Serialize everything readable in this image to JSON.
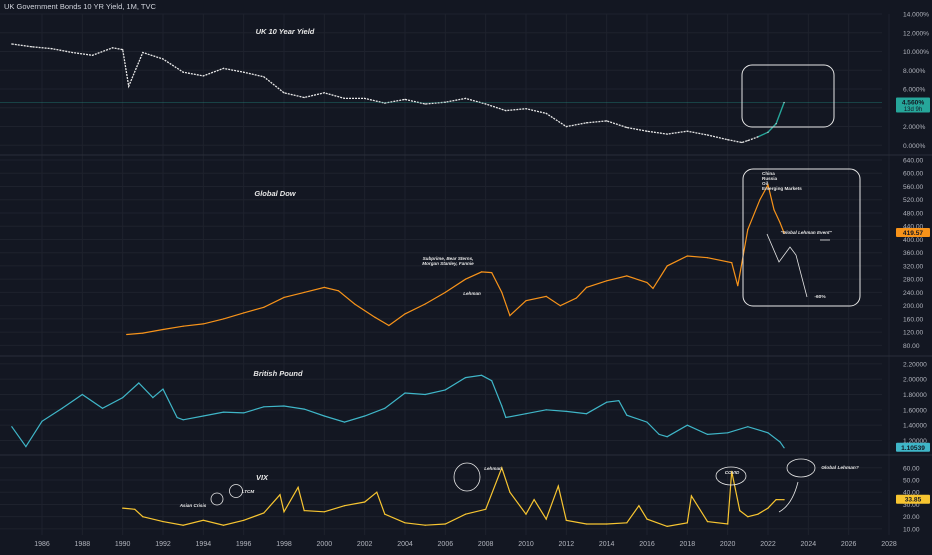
{
  "header": {
    "title": "UK Government Bonds 10 YR Yield, 1M, TVC"
  },
  "colors": {
    "background": "#131722",
    "grid": "#1e222d",
    "axis_text": "#b2b5be",
    "uk10y": "#e8e8e8",
    "uk10y_recent": "#26a69a",
    "global_dow": "#f7931a",
    "gbp": "#3fb6c8",
    "vix": "#f7c531",
    "annotation": "#e6e6e6"
  },
  "x_axis": {
    "ticks": [
      "1986",
      "1988",
      "1990",
      "1992",
      "1994",
      "1996",
      "1998",
      "2000",
      "2002",
      "2004",
      "2006",
      "2008",
      "2010",
      "2012",
      "2014",
      "2016",
      "2018",
      "2020",
      "2022",
      "2024",
      "2026",
      "2028"
    ]
  },
  "panels": {
    "uk10y": {
      "title": "UK 10 Year Yield",
      "axis_ticks": [
        "0.000%",
        "2.000%",
        "4.000%",
        "6.000%",
        "8.000%",
        "10.000%",
        "12.000%",
        "14.000%"
      ],
      "last_value_label": "4.560%",
      "last_value_sub": "13d 9h"
    },
    "global_dow": {
      "title": "Global Dow",
      "axis_ticks": [
        "80.00",
        "120.00",
        "160.00",
        "200.00",
        "240.00",
        "280.00",
        "320.00",
        "360.00",
        "400.00",
        "440.00",
        "480.00",
        "520.00",
        "560.00",
        "600.00",
        "640.00"
      ],
      "last_value_label": "419.57",
      "annotations": {
        "subprime": [
          "Subprime, Bear Sterns,",
          "Morgan Stanley, Fannie"
        ],
        "lehman": "Lehman",
        "china_list": [
          "China",
          "Russia",
          "Oil",
          "Emerging Markets"
        ],
        "global_event": "\"Global Lehman Event\"",
        "drop": "-60%"
      }
    },
    "gbp": {
      "title": "British Pound",
      "axis_ticks": [
        "1.20000",
        "1.40000",
        "1.60000",
        "1.80000",
        "2.00000",
        "2.20000"
      ],
      "last_value_label": "1.10539"
    },
    "vix": {
      "title": "VIX",
      "axis_ticks": [
        "10.00",
        "20.00",
        "30.00",
        "40.00",
        "50.00",
        "60.00"
      ],
      "last_value_label": "33.85",
      "annotations": {
        "asian": "Asian Crisis",
        "ltcm": "LTCM",
        "lehman": "Lehman",
        "covid": "COVID",
        "global_lehman": "Global Lehman?"
      }
    }
  },
  "chart_data": [
    {
      "type": "line",
      "title": "UK 10 Year Yield",
      "x": [
        1984.5,
        1985.5,
        1986.5,
        1987.5,
        1988.5,
        1989.5,
        1990.0,
        1990.3,
        1991,
        1992,
        1993,
        1994,
        1995,
        1996,
        1997,
        1998,
        1999,
        2000,
        2001,
        2002,
        2003,
        2004,
        2005,
        2006,
        2007,
        2008,
        2009,
        2010,
        2011,
        2012,
        2013,
        2014,
        2015,
        2016,
        2017,
        2018,
        2019,
        2020,
        2020.7,
        2021,
        2021.5,
        2022,
        2022.4,
        2022.8
      ],
      "y": [
        10.8,
        10.5,
        10.3,
        9.9,
        9.6,
        10.4,
        10.2,
        6.3,
        9.9,
        9.2,
        7.8,
        7.4,
        8.2,
        7.8,
        7.3,
        5.6,
        5.1,
        5.6,
        5.0,
        5.0,
        4.5,
        4.9,
        4.4,
        4.6,
        5.0,
        4.4,
        3.7,
        3.9,
        3.4,
        2.0,
        2.4,
        2.6,
        1.9,
        1.5,
        1.2,
        1.5,
        1.1,
        0.6,
        0.3,
        0.5,
        0.9,
        1.4,
        2.3,
        4.56
      ],
      "ylim": [
        -0.5,
        14.0
      ]
    },
    {
      "type": "line",
      "title": "Global Dow",
      "x": [
        1990.2,
        1991,
        1992,
        1993,
        1994,
        1995,
        1996,
        1997,
        1998,
        1999,
        2000,
        2000.7,
        2001.5,
        2002.5,
        2003.2,
        2004,
        2005,
        2006,
        2007,
        2007.8,
        2008.3,
        2008.8,
        2009.2,
        2010,
        2011,
        2011.7,
        2012.5,
        2013,
        2014,
        2015,
        2016,
        2016.3,
        2017,
        2018,
        2019,
        2020.2,
        2020.5,
        2021,
        2021.6,
        2022,
        2022.3,
        2022.6,
        2022.8
      ],
      "y": [
        113,
        117,
        128,
        138,
        145,
        160,
        178,
        195,
        225,
        240,
        255,
        245,
        205,
        165,
        140,
        175,
        205,
        240,
        280,
        302,
        300,
        240,
        170,
        215,
        228,
        200,
        223,
        255,
        275,
        290,
        270,
        252,
        320,
        350,
        345,
        330,
        260,
        430,
        520,
        565,
        490,
        450,
        419.57
      ],
      "ylim": [
        60,
        640
      ]
    },
    {
      "type": "line",
      "title": "British Pound",
      "x": [
        1984.5,
        1985.2,
        1986,
        1987,
        1988,
        1989,
        1990,
        1990.8,
        1991.5,
        1992,
        1992.7,
        1993,
        1994,
        1995,
        1996,
        1997,
        1998,
        1999,
        2000,
        2001,
        2002,
        2003,
        2004,
        2005,
        2006,
        2007,
        2007.8,
        2008.3,
        2008.8,
        2009,
        2010,
        2011,
        2012,
        2013,
        2014,
        2014.6,
        2015,
        2016,
        2016.6,
        2017,
        2018,
        2019,
        2020,
        2021,
        2022,
        2022.6,
        2022.8
      ],
      "y": [
        1.38,
        1.12,
        1.45,
        1.62,
        1.8,
        1.62,
        1.76,
        1.95,
        1.76,
        1.87,
        1.5,
        1.47,
        1.52,
        1.57,
        1.56,
        1.64,
        1.65,
        1.61,
        1.52,
        1.44,
        1.52,
        1.62,
        1.82,
        1.8,
        1.86,
        2.02,
        2.05,
        1.98,
        1.65,
        1.5,
        1.55,
        1.6,
        1.58,
        1.55,
        1.7,
        1.72,
        1.53,
        1.44,
        1.28,
        1.25,
        1.4,
        1.28,
        1.3,
        1.38,
        1.3,
        1.18,
        1.10539
      ],
      "ylim": [
        1.05,
        2.25
      ]
    },
    {
      "type": "line",
      "title": "VIX",
      "x": [
        1990,
        1990.6,
        1991,
        1992,
        1993,
        1994,
        1995,
        1996,
        1997,
        1997.8,
        1998,
        1998.7,
        1999,
        2000,
        2001,
        2002,
        2002.6,
        2003,
        2004,
        2005,
        2006,
        2007,
        2008,
        2008.8,
        2009.2,
        2010,
        2010.4,
        2011,
        2011.6,
        2012,
        2013,
        2014,
        2015,
        2015.6,
        2016,
        2017,
        2018,
        2018.2,
        2019,
        2020,
        2020.2,
        2020.6,
        2021,
        2021.5,
        2022,
        2022.4,
        2022.8
      ],
      "y": [
        27,
        26,
        20,
        16,
        13,
        17,
        13,
        17,
        23,
        38,
        24,
        44,
        25,
        24,
        29,
        32,
        40,
        22,
        15,
        13,
        14,
        22,
        26,
        60,
        40,
        22,
        34,
        18,
        45,
        17,
        14,
        14,
        15,
        29,
        18,
        12,
        15,
        37,
        16,
        14,
        57,
        25,
        20,
        22,
        27,
        34,
        33.85
      ],
      "ylim": [
        5,
        68
      ]
    }
  ]
}
